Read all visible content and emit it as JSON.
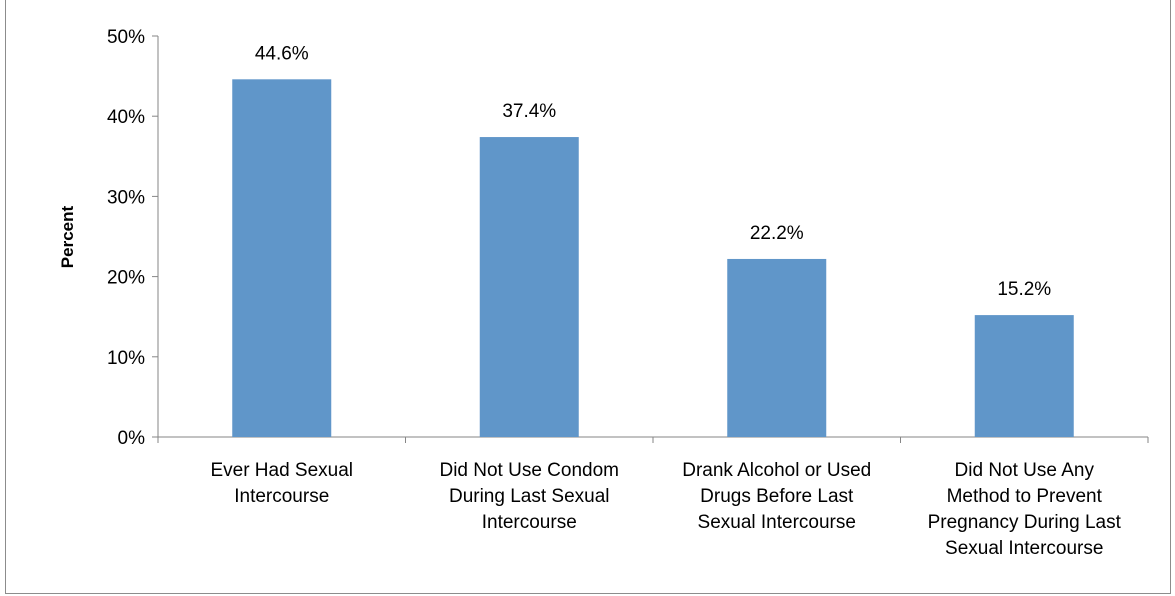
{
  "chart_data": {
    "type": "bar",
    "title": "",
    "xlabel": "",
    "ylabel": "Percent",
    "ylim": [
      0,
      50
    ],
    "y_ticks": [
      "0%",
      "10%",
      "20%",
      "30%",
      "40%",
      "50%"
    ],
    "categories": [
      [
        "Ever Had Sexual",
        "Intercourse"
      ],
      [
        "Did Not Use Condom",
        "During Last Sexual",
        "Intercourse"
      ],
      [
        "Drank Alcohol or Used",
        "Drugs Before Last",
        "Sexual Intercourse"
      ],
      [
        "Did Not Use Any",
        "Method to Prevent",
        "Pregnancy During Last",
        "Sexual Intercourse"
      ]
    ],
    "values": [
      44.6,
      37.4,
      22.2,
      15.2
    ],
    "data_labels": [
      "44.6%",
      "37.4%",
      "22.2%",
      "15.2%"
    ],
    "bar_color": "#6096c9",
    "grid": false,
    "legend": "none"
  }
}
